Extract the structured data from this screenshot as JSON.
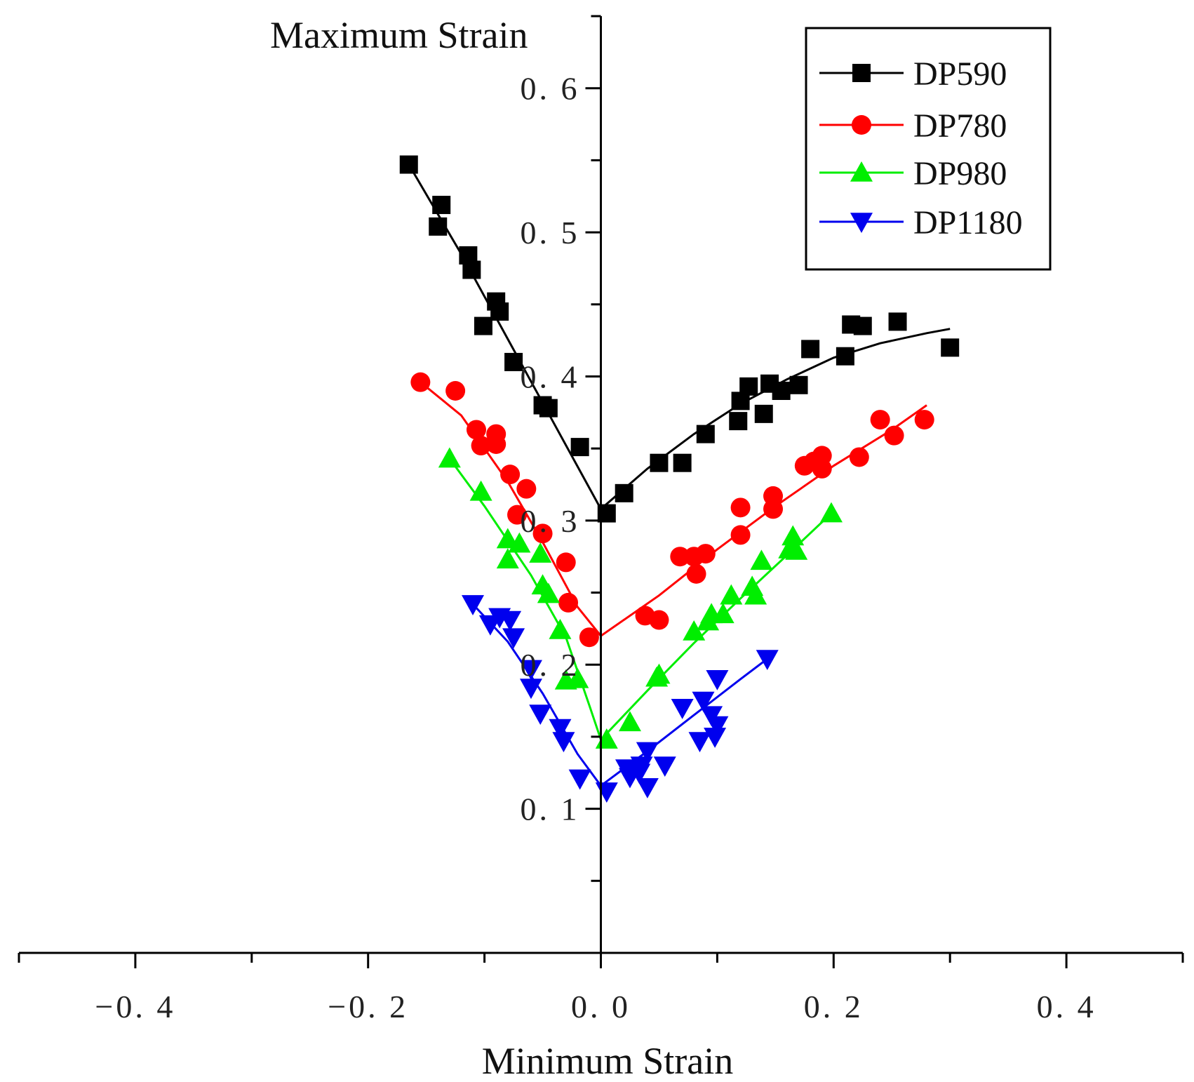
{
  "chart_data": {
    "type": "scatter",
    "title": "",
    "xlabel": "Minimum Strain",
    "ylabel": "Maximum Strain",
    "xlim": [
      -0.5,
      0.5
    ],
    "ylim": [
      0,
      0.65
    ],
    "x_ticks": [
      {
        "value": -0.4,
        "label": "−0. 4"
      },
      {
        "value": -0.2,
        "label": "−0. 2"
      },
      {
        "value": 0.0,
        "label": "0. 0"
      },
      {
        "value": 0.2,
        "label": "0. 2"
      },
      {
        "value": 0.4,
        "label": "0. 4"
      }
    ],
    "y_ticks": [
      {
        "value": 0.1,
        "label": "0. 1"
      },
      {
        "value": 0.2,
        "label": "0. 2"
      },
      {
        "value": 0.3,
        "label": "0. 3"
      },
      {
        "value": 0.4,
        "label": "0. 4"
      },
      {
        "value": 0.5,
        "label": "0. 5"
      },
      {
        "value": 0.6,
        "label": "0. 6"
      }
    ],
    "legend_position": "top-right",
    "series": [
      {
        "name": "DP590",
        "color": "#000000",
        "marker": "square",
        "points": [
          [
            -0.165,
            0.547
          ],
          [
            -0.137,
            0.519
          ],
          [
            -0.14,
            0.504
          ],
          [
            -0.114,
            0.484
          ],
          [
            -0.111,
            0.474
          ],
          [
            -0.09,
            0.452
          ],
          [
            -0.087,
            0.445
          ],
          [
            -0.101,
            0.435
          ],
          [
            -0.075,
            0.41
          ],
          [
            -0.05,
            0.38
          ],
          [
            -0.045,
            0.378
          ],
          [
            -0.018,
            0.351
          ],
          [
            0.005,
            0.305
          ],
          [
            0.02,
            0.319
          ],
          [
            0.05,
            0.34
          ],
          [
            0.07,
            0.34
          ],
          [
            0.09,
            0.36
          ],
          [
            0.118,
            0.369
          ],
          [
            0.12,
            0.383
          ],
          [
            0.127,
            0.393
          ],
          [
            0.14,
            0.374
          ],
          [
            0.145,
            0.395
          ],
          [
            0.155,
            0.39
          ],
          [
            0.17,
            0.394
          ],
          [
            0.18,
            0.419
          ],
          [
            0.21,
            0.414
          ],
          [
            0.215,
            0.436
          ],
          [
            0.225,
            0.435
          ],
          [
            0.255,
            0.438
          ],
          [
            0.3,
            0.42
          ]
        ],
        "fit": [
          [
            -0.165,
            0.547
          ],
          [
            -0.12,
            0.485
          ],
          [
            -0.08,
            0.426
          ],
          [
            -0.04,
            0.367
          ],
          [
            0.0,
            0.308
          ],
          [
            0.04,
            0.336
          ],
          [
            0.08,
            0.36
          ],
          [
            0.12,
            0.381
          ],
          [
            0.16,
            0.398
          ],
          [
            0.2,
            0.413
          ],
          [
            0.24,
            0.423
          ],
          [
            0.28,
            0.43
          ],
          [
            0.3,
            0.433
          ]
        ]
      },
      {
        "name": "DP780",
        "color": "#ff0000",
        "marker": "circle",
        "points": [
          [
            -0.155,
            0.396
          ],
          [
            -0.125,
            0.39
          ],
          [
            -0.107,
            0.363
          ],
          [
            -0.103,
            0.352
          ],
          [
            -0.09,
            0.36
          ],
          [
            -0.09,
            0.353
          ],
          [
            -0.078,
            0.332
          ],
          [
            -0.064,
            0.322
          ],
          [
            -0.072,
            0.304
          ],
          [
            -0.05,
            0.291
          ],
          [
            -0.03,
            0.271
          ],
          [
            -0.028,
            0.243
          ],
          [
            -0.01,
            0.219
          ],
          [
            0.038,
            0.234
          ],
          [
            0.05,
            0.231
          ],
          [
            0.068,
            0.275
          ],
          [
            0.08,
            0.275
          ],
          [
            0.082,
            0.263
          ],
          [
            0.09,
            0.277
          ],
          [
            0.12,
            0.309
          ],
          [
            0.12,
            0.29
          ],
          [
            0.148,
            0.317
          ],
          [
            0.148,
            0.308
          ],
          [
            0.175,
            0.338
          ],
          [
            0.183,
            0.341
          ],
          [
            0.19,
            0.336
          ],
          [
            0.19,
            0.345
          ],
          [
            0.222,
            0.344
          ],
          [
            0.24,
            0.37
          ],
          [
            0.252,
            0.359
          ],
          [
            0.278,
            0.37
          ]
        ],
        "fit": [
          [
            -0.155,
            0.396
          ],
          [
            -0.12,
            0.373
          ],
          [
            -0.08,
            0.327
          ],
          [
            -0.05,
            0.285
          ],
          [
            -0.02,
            0.24
          ],
          [
            0.0,
            0.22
          ],
          [
            0.05,
            0.248
          ],
          [
            0.1,
            0.28
          ],
          [
            0.15,
            0.31
          ],
          [
            0.2,
            0.338
          ],
          [
            0.25,
            0.363
          ],
          [
            0.28,
            0.38
          ]
        ]
      },
      {
        "name": "DP980",
        "color": "#00ee00",
        "marker": "triangle-up",
        "points": [
          [
            -0.13,
            0.343
          ],
          [
            -0.103,
            0.32
          ],
          [
            -0.08,
            0.287
          ],
          [
            -0.07,
            0.284
          ],
          [
            -0.08,
            0.273
          ],
          [
            -0.052,
            0.277
          ],
          [
            -0.05,
            0.255
          ],
          [
            -0.045,
            0.249
          ],
          [
            -0.035,
            0.224
          ],
          [
            -0.03,
            0.189
          ],
          [
            -0.02,
            0.19
          ],
          [
            0.005,
            0.148
          ],
          [
            0.025,
            0.16
          ],
          [
            0.048,
            0.191
          ],
          [
            0.05,
            0.193
          ],
          [
            0.08,
            0.223
          ],
          [
            0.092,
            0.23
          ],
          [
            0.095,
            0.235
          ],
          [
            0.105,
            0.235
          ],
          [
            0.112,
            0.248
          ],
          [
            0.13,
            0.254
          ],
          [
            0.133,
            0.248
          ],
          [
            0.138,
            0.272
          ],
          [
            0.162,
            0.28
          ],
          [
            0.165,
            0.289
          ],
          [
            0.168,
            0.279
          ],
          [
            0.198,
            0.305
          ]
        ],
        "fit": [
          [
            -0.13,
            0.343
          ],
          [
            -0.1,
            0.31
          ],
          [
            -0.06,
            0.262
          ],
          [
            -0.03,
            0.219
          ],
          [
            -0.01,
            0.172
          ],
          [
            0.0,
            0.148
          ],
          [
            0.04,
            0.182
          ],
          [
            0.08,
            0.215
          ],
          [
            0.12,
            0.246
          ],
          [
            0.16,
            0.276
          ],
          [
            0.198,
            0.305
          ]
        ]
      },
      {
        "name": "DP1180",
        "color": "#0000ee",
        "marker": "triangle-down",
        "points": [
          [
            -0.11,
            0.242
          ],
          [
            -0.095,
            0.228
          ],
          [
            -0.087,
            0.233
          ],
          [
            -0.078,
            0.231
          ],
          [
            -0.075,
            0.219
          ],
          [
            -0.06,
            0.197
          ],
          [
            -0.06,
            0.184
          ],
          [
            -0.052,
            0.166
          ],
          [
            -0.035,
            0.156
          ],
          [
            -0.032,
            0.147
          ],
          [
            -0.018,
            0.121
          ],
          [
            0.005,
            0.112
          ],
          [
            0.022,
            0.128
          ],
          [
            0.025,
            0.122
          ],
          [
            0.033,
            0.125
          ],
          [
            0.035,
            0.13
          ],
          [
            0.04,
            0.14
          ],
          [
            0.04,
            0.115
          ],
          [
            0.055,
            0.13
          ],
          [
            0.07,
            0.17
          ],
          [
            0.085,
            0.147
          ],
          [
            0.088,
            0.175
          ],
          [
            0.095,
            0.165
          ],
          [
            0.098,
            0.15
          ],
          [
            0.1,
            0.158
          ],
          [
            0.1,
            0.19
          ],
          [
            0.143,
            0.204
          ]
        ],
        "fit": [
          [
            -0.11,
            0.242
          ],
          [
            -0.08,
            0.216
          ],
          [
            -0.05,
            0.18
          ],
          [
            -0.02,
            0.138
          ],
          [
            0.0,
            0.116
          ],
          [
            0.04,
            0.14
          ],
          [
            0.08,
            0.165
          ],
          [
            0.12,
            0.19
          ],
          [
            0.143,
            0.204
          ]
        ]
      }
    ]
  }
}
